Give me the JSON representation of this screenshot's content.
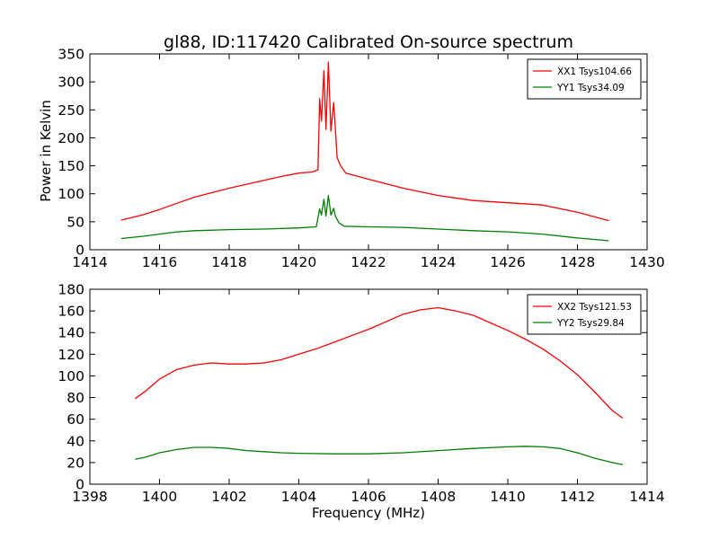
{
  "figure": {
    "title": "gl88, ID:117420 Calibrated On-source spectrum",
    "ylabel": "Power in Kelvin",
    "xlabel": "Frequency (MHz)"
  },
  "chart_data": [
    {
      "type": "line",
      "title": "gl88, ID:117420 Calibrated On-source spectrum",
      "xlabel": "",
      "ylabel": "Power in Kelvin",
      "xlim": [
        1414,
        1430
      ],
      "ylim": [
        0,
        350
      ],
      "xticks": [
        1414,
        1416,
        1418,
        1420,
        1422,
        1424,
        1426,
        1428,
        1430
      ],
      "yticks": [
        0,
        50,
        100,
        150,
        200,
        250,
        300,
        350
      ],
      "grid": false,
      "legend": "top-right",
      "series": [
        {
          "name": "XX1 Tsys104.66",
          "color": "#ff0000",
          "points": [
            [
              1414.9,
              53
            ],
            [
              1415.5,
              62
            ],
            [
              1416.0,
              72
            ],
            [
              1416.5,
              83
            ],
            [
              1417.0,
              94
            ],
            [
              1417.5,
              102
            ],
            [
              1418.0,
              110
            ],
            [
              1418.5,
              117
            ],
            [
              1419.0,
              124
            ],
            [
              1419.5,
              131
            ],
            [
              1420.0,
              137
            ],
            [
              1420.4,
              139
            ],
            [
              1420.55,
              143
            ],
            [
              1420.6,
              270
            ],
            [
              1420.65,
              230
            ],
            [
              1420.72,
              320
            ],
            [
              1420.78,
              215
            ],
            [
              1420.85,
              335
            ],
            [
              1420.92,
              212
            ],
            [
              1421.0,
              263
            ],
            [
              1421.05,
              215
            ],
            [
              1421.1,
              165
            ],
            [
              1421.2,
              150
            ],
            [
              1421.35,
              137
            ],
            [
              1421.6,
              133
            ],
            [
              1422.0,
              126
            ],
            [
              1423.0,
              110
            ],
            [
              1424.0,
              97
            ],
            [
              1425.0,
              88
            ],
            [
              1426.0,
              84
            ],
            [
              1427.0,
              80
            ],
            [
              1428.0,
              67
            ],
            [
              1428.9,
              52
            ]
          ]
        },
        {
          "name": "YY1 Tsys34.09",
          "color": "#008000",
          "points": [
            [
              1414.9,
              20
            ],
            [
              1415.5,
              24
            ],
            [
              1416.0,
              28
            ],
            [
              1416.5,
              32
            ],
            [
              1417.0,
              34
            ],
            [
              1418.0,
              36
            ],
            [
              1419.0,
              37
            ],
            [
              1420.0,
              39
            ],
            [
              1420.5,
              41
            ],
            [
              1420.6,
              73
            ],
            [
              1420.65,
              62
            ],
            [
              1420.72,
              90
            ],
            [
              1420.78,
              60
            ],
            [
              1420.85,
              97
            ],
            [
              1420.92,
              62
            ],
            [
              1421.0,
              74
            ],
            [
              1421.05,
              60
            ],
            [
              1421.15,
              48
            ],
            [
              1421.3,
              42
            ],
            [
              1422.0,
              41
            ],
            [
              1423.0,
              40
            ],
            [
              1424.0,
              37
            ],
            [
              1425.0,
              34
            ],
            [
              1426.0,
              32
            ],
            [
              1427.0,
              28
            ],
            [
              1428.0,
              21
            ],
            [
              1428.9,
              16
            ]
          ]
        }
      ]
    },
    {
      "type": "line",
      "title": "",
      "xlabel": "Frequency (MHz)",
      "ylabel": "",
      "xlim": [
        1398,
        1414
      ],
      "ylim": [
        0,
        180
      ],
      "xticks": [
        1398,
        1400,
        1402,
        1404,
        1406,
        1408,
        1410,
        1412,
        1414
      ],
      "yticks": [
        0,
        20,
        40,
        60,
        80,
        100,
        120,
        140,
        160,
        180
      ],
      "grid": false,
      "legend": "top-right",
      "series": [
        {
          "name": "XX2 Tsys121.53",
          "color": "#ff0000",
          "points": [
            [
              1399.3,
              79
            ],
            [
              1399.6,
              86
            ],
            [
              1400.0,
              97
            ],
            [
              1400.5,
              106
            ],
            [
              1401.0,
              110
            ],
            [
              1401.5,
              112
            ],
            [
              1402.0,
              111
            ],
            [
              1402.5,
              111
            ],
            [
              1403.0,
              112
            ],
            [
              1403.5,
              115
            ],
            [
              1404.0,
              120
            ],
            [
              1404.5,
              125
            ],
            [
              1405.0,
              131
            ],
            [
              1405.5,
              137
            ],
            [
              1406.0,
              143
            ],
            [
              1406.5,
              150
            ],
            [
              1407.0,
              157
            ],
            [
              1407.5,
              161
            ],
            [
              1408.0,
              163
            ],
            [
              1408.5,
              160
            ],
            [
              1409.0,
              156
            ],
            [
              1409.5,
              149
            ],
            [
              1410.0,
              142
            ],
            [
              1410.5,
              134
            ],
            [
              1411.0,
              125
            ],
            [
              1411.5,
              114
            ],
            [
              1412.0,
              101
            ],
            [
              1412.5,
              85
            ],
            [
              1413.0,
              68
            ],
            [
              1413.3,
              61
            ]
          ]
        },
        {
          "name": "YY2 Tsys29.84",
          "color": "#008000",
          "points": [
            [
              1399.3,
              23
            ],
            [
              1399.6,
              25
            ],
            [
              1400.0,
              29
            ],
            [
              1400.5,
              32
            ],
            [
              1401.0,
              34
            ],
            [
              1401.5,
              34
            ],
            [
              1402.0,
              33
            ],
            [
              1402.5,
              31
            ],
            [
              1403.0,
              30
            ],
            [
              1403.5,
              29
            ],
            [
              1404.0,
              28.5
            ],
            [
              1405.0,
              28
            ],
            [
              1406.0,
              28
            ],
            [
              1407.0,
              29
            ],
            [
              1408.0,
              31
            ],
            [
              1409.0,
              33
            ],
            [
              1410.0,
              34.5
            ],
            [
              1410.5,
              35
            ],
            [
              1411.0,
              34.5
            ],
            [
              1411.5,
              33
            ],
            [
              1412.0,
              29
            ],
            [
              1412.5,
              24
            ],
            [
              1413.0,
              20
            ],
            [
              1413.3,
              18
            ]
          ]
        }
      ]
    }
  ]
}
